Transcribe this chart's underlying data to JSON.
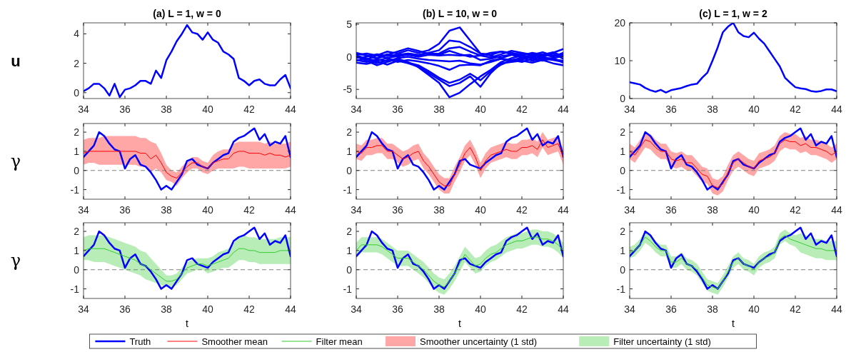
{
  "chart_data": [
    {
      "type": "line",
      "title": "(a) L = 1, w = 0",
      "ylabel": "u",
      "x": [
        34,
        34.25,
        34.5,
        34.75,
        35,
        35.25,
        35.5,
        35.75,
        36,
        36.25,
        36.5,
        36.75,
        37,
        37.25,
        37.5,
        37.75,
        38,
        38.25,
        38.5,
        38.75,
        39,
        39.25,
        39.5,
        39.75,
        40,
        40.25,
        40.5,
        40.75,
        41,
        41.25,
        41.5,
        41.75,
        42,
        42.25,
        42.5,
        42.75,
        43,
        43.25,
        43.5,
        43.75,
        44
      ],
      "xlim": [
        34,
        44
      ],
      "xticks": [
        34,
        36,
        38,
        40,
        42,
        44
      ],
      "ylim": [
        -0.4,
        4.75
      ],
      "yticks": [
        0,
        2,
        4
      ],
      "series": [
        {
          "color": "#0000ff",
          "values": [
            0.1,
            0.3,
            0.6,
            0.6,
            0.3,
            -0.2,
            0.6,
            -0.3,
            0.2,
            0.3,
            0.5,
            0.8,
            0.8,
            0.6,
            1.5,
            1.0,
            2.2,
            2.8,
            3.5,
            4.0,
            4.6,
            4.1,
            4.0,
            3.6,
            4.1,
            3.6,
            3.4,
            2.8,
            2.6,
            2.3,
            1.0,
            0.8,
            0.5,
            0.8,
            0.9,
            0.6,
            0.5,
            0.5,
            0.9,
            1.2,
            0.3
          ]
        }
      ]
    },
    {
      "type": "line",
      "title": "(b) L = 10, w = 0",
      "x": [
        34,
        34.5,
        35,
        35.5,
        36,
        36.5,
        37,
        37.5,
        38,
        38.5,
        39,
        39.5,
        40,
        40.5,
        41,
        41.5,
        42,
        42.5,
        43,
        43.5,
        44
      ],
      "xlim": [
        34,
        44
      ],
      "xticks": [
        34,
        36,
        38,
        40,
        42,
        44
      ],
      "ylim": [
        -6.4,
        5.2
      ],
      "yticks": [
        -5,
        0,
        5
      ],
      "series": [
        {
          "color": "#0000ff",
          "values": [
            0.3,
            0.5,
            0.2,
            0.8,
            0.5,
            1.0,
            0.6,
            1.0,
            2.0,
            4.0,
            4.5,
            2.5,
            0.5,
            0.3,
            0.8,
            0.6,
            0.3,
            0.5,
            0.2,
            0.6,
            1.2
          ]
        },
        {
          "color": "#0000ff",
          "values": [
            -0.2,
            0.0,
            0.4,
            0.1,
            0.3,
            0.5,
            0.3,
            0.6,
            1.0,
            2.5,
            2.3,
            1.5,
            0.5,
            0.2,
            -0.2,
            0.3,
            0.5,
            0.2,
            0.4,
            0.0,
            0.6
          ]
        },
        {
          "color": "#0000ff",
          "values": [
            0.5,
            0.2,
            -0.3,
            0.3,
            0.8,
            1.3,
            0.9,
            0.4,
            0.5,
            1.3,
            1.5,
            0.8,
            0.2,
            -0.1,
            0.4,
            0.9,
            0.6,
            0.3,
            0.7,
            0.2,
            0.4
          ]
        },
        {
          "color": "#0000ff",
          "values": [
            0.0,
            -0.4,
            0.2,
            -0.2,
            0.1,
            0.3,
            0.0,
            0.3,
            0.2,
            0.3,
            0.2,
            0.3,
            -0.5,
            -0.3,
            0.1,
            0.3,
            -0.1,
            0.2,
            0.0,
            0.5,
            -0.3
          ]
        },
        {
          "color": "#0000ff",
          "values": [
            -0.5,
            -0.8,
            -0.4,
            -0.7,
            -0.2,
            0.0,
            -0.3,
            -0.5,
            -0.6,
            -0.7,
            -0.6,
            -1.0,
            -1.2,
            -0.8,
            -0.3,
            -0.5,
            -0.2,
            -0.6,
            -0.3,
            -0.5,
            -0.8
          ]
        },
        {
          "color": "#0000ff",
          "values": [
            0.2,
            -0.3,
            -0.6,
            -0.2,
            -0.8,
            -0.5,
            -0.7,
            -1.0,
            -1.4,
            -2.0,
            -1.3,
            -1.2,
            -1.3,
            -0.6,
            -0.3,
            -0.7,
            -0.4,
            0.0,
            -0.3,
            -0.2,
            0.1
          ]
        },
        {
          "color": "#0000ff",
          "values": [
            -0.6,
            -0.3,
            -1.0,
            -0.5,
            -0.4,
            -0.9,
            -1.3,
            -2.2,
            -3.2,
            -4.0,
            -3.5,
            -2.6,
            -3.6,
            -2.2,
            -1.2,
            -0.5,
            -0.8,
            -0.3,
            -0.6,
            -0.2,
            -0.9
          ]
        },
        {
          "color": "#0000ff",
          "values": [
            -0.9,
            -1.1,
            -0.7,
            -1.2,
            -0.6,
            -1.0,
            -1.5,
            -2.5,
            -3.5,
            -4.5,
            -4.0,
            -3.0,
            -4.6,
            -2.5,
            -1.0,
            -0.8,
            -0.6,
            -0.9,
            -0.5,
            -1.0,
            -1.3
          ]
        },
        {
          "color": "#0000ff",
          "values": [
            0.0,
            -0.6,
            -1.3,
            -0.8,
            -0.3,
            -0.8,
            -1.6,
            -2.8,
            -4.0,
            -6.2,
            -5.5,
            -4.2,
            -3.0,
            -2.0,
            -0.8,
            -0.2,
            0.2,
            -0.3,
            0.0,
            -0.4,
            -0.6
          ]
        },
        {
          "color": "#0000ff",
          "values": [
            0.6,
            0.2,
            -0.2,
            0.4,
            0.0,
            0.5,
            0.2,
            0.6,
            0.3,
            0.9,
            0.4,
            0.0,
            0.2,
            0.6,
            0.8,
            0.4,
            0.2,
            0.6,
            0.3,
            0.7,
            0.1
          ]
        }
      ]
    },
    {
      "type": "line",
      "title": "(c) L = 1, w = 2",
      "x": [
        34,
        34.25,
        34.5,
        34.75,
        35,
        35.25,
        35.5,
        35.75,
        36,
        36.25,
        36.5,
        36.75,
        37,
        37.25,
        37.5,
        37.75,
        38,
        38.25,
        38.5,
        38.75,
        39,
        39.25,
        39.5,
        39.75,
        40,
        40.25,
        40.5,
        40.75,
        41,
        41.25,
        41.5,
        41.75,
        42,
        42.25,
        42.5,
        42.75,
        43,
        43.25,
        43.5,
        43.75,
        44
      ],
      "xlim": [
        34,
        44
      ],
      "xticks": [
        34,
        36,
        38,
        40,
        42,
        44
      ],
      "ylim": [
        0,
        20
      ],
      "yticks": [
        0,
        10,
        20
      ],
      "series": [
        {
          "color": "#0000ff",
          "values": [
            4.3,
            4.0,
            3.7,
            2.8,
            2.2,
            1.8,
            2.3,
            1.6,
            2.2,
            2.5,
            2.8,
            3.3,
            3.7,
            3.9,
            5.5,
            6.8,
            10.0,
            13.5,
            17.5,
            19.0,
            20.0,
            17.5,
            16.5,
            16.2,
            17.4,
            15.8,
            14.5,
            12.5,
            10.5,
            8.5,
            5.5,
            4.2,
            3.0,
            2.7,
            2.5,
            2.0,
            1.8,
            2.0,
            2.4,
            2.4,
            1.9
          ]
        }
      ]
    },
    {
      "type": "line",
      "ylabel": "γ",
      "legend": "bottom",
      "annotations": [
        "Smoother uncertainty (1 std)"
      ],
      "x": [
        34,
        34.25,
        34.5,
        34.75,
        35,
        35.25,
        35.5,
        35.75,
        36,
        36.25,
        36.5,
        36.75,
        37,
        37.25,
        37.5,
        37.75,
        38,
        38.25,
        38.5,
        38.75,
        39,
        39.25,
        39.5,
        39.75,
        40,
        40.25,
        40.5,
        40.75,
        41,
        41.25,
        41.5,
        41.75,
        42,
        42.25,
        42.5,
        42.75,
        43,
        43.25,
        43.5,
        43.75,
        44
      ],
      "xlim": [
        34,
        44
      ],
      "xticks": [
        34,
        36,
        38,
        40,
        42,
        44
      ],
      "ylim": [
        -1.5,
        2.45
      ],
      "yticks": [
        -1,
        0,
        1,
        2
      ],
      "ref_lines": [
        {
          "axis": "y",
          "value": 0,
          "color": "#808080",
          "line_style": "dashed"
        }
      ],
      "series": [
        {
          "name": "Truth",
          "color": "#0000ff",
          "values": [
            0.7,
            1.0,
            1.3,
            2.0,
            1.8,
            1.4,
            1.1,
            1.0,
            0.1,
            0.6,
            0.8,
            0.3,
            0.2,
            -0.1,
            -0.5,
            -1.0,
            -0.8,
            -1.0,
            -0.6,
            -0.2,
            0.5,
            0.6,
            0.3,
            0.2,
            0.1,
            0.4,
            0.6,
            0.8,
            0.9,
            1.5,
            1.7,
            1.8,
            2.0,
            2.2,
            1.6,
            1.9,
            1.3,
            1.5,
            1.4,
            1.8,
            0.7
          ]
        },
        {
          "name": "Smoother mean",
          "color": "#ff0000",
          "values": [
            0.9,
            1.0,
            1.0,
            1.0,
            1.0,
            1.0,
            1.0,
            1.0,
            1.0,
            1.0,
            1.0,
            0.9,
            0.9,
            0.6,
            0.8,
            0.4,
            -0.1,
            -0.3,
            -0.4,
            -0.1,
            0.2,
            0.4,
            0.4,
            0.2,
            0.1,
            0.4,
            0.5,
            0.6,
            0.6,
            0.9,
            1.0,
            1.0,
            0.9,
            0.9,
            0.9,
            0.8,
            0.9,
            0.8,
            0.8,
            0.7,
            0.8
          ],
          "lower": [
            0.3,
            0.4,
            0.4,
            0.3,
            0.3,
            0.3,
            0.3,
            0.3,
            0.3,
            0.3,
            0.3,
            0.2,
            0.2,
            -0.1,
            0.1,
            -0.1,
            -0.5,
            -0.6,
            -0.8,
            -0.4,
            -0.1,
            0.1,
            0.1,
            -0.1,
            -0.2,
            0.0,
            0.1,
            0.1,
            0.1,
            0.1,
            0.2,
            0.2,
            0.1,
            0.1,
            0.1,
            0.1,
            0.1,
            0.1,
            0.1,
            0.1,
            0.2
          ],
          "upper": [
            1.6,
            1.7,
            1.7,
            1.7,
            1.8,
            1.8,
            1.8,
            1.8,
            1.8,
            1.8,
            1.8,
            1.7,
            1.7,
            1.5,
            1.4,
            0.9,
            0.3,
            0.0,
            -0.1,
            0.2,
            0.5,
            0.7,
            0.7,
            0.5,
            0.4,
            0.8,
            1.0,
            1.1,
            1.1,
            1.4,
            1.5,
            1.5,
            1.5,
            1.5,
            1.5,
            1.4,
            1.5,
            1.4,
            1.4,
            1.4,
            1.5
          ]
        }
      ]
    },
    {
      "type": "line",
      "x": [
        34,
        34.25,
        34.5,
        34.75,
        35,
        35.25,
        35.5,
        35.75,
        36,
        36.25,
        36.5,
        36.75,
        37,
        37.25,
        37.5,
        37.75,
        38,
        38.25,
        38.5,
        38.75,
        39,
        39.25,
        39.5,
        39.75,
        40,
        40.25,
        40.5,
        40.75,
        41,
        41.25,
        41.5,
        41.75,
        42,
        42.25,
        42.5,
        42.75,
        43,
        43.25,
        43.5,
        43.75,
        44
      ],
      "xlim": [
        34,
        44
      ],
      "xticks": [
        34,
        36,
        38,
        40,
        42,
        44
      ],
      "ylim": [
        -1.5,
        2.45
      ],
      "yticks": [
        -1,
        0,
        1,
        2
      ],
      "ref_lines": [
        {
          "axis": "y",
          "value": 0,
          "color": "#808080",
          "line_style": "dashed"
        }
      ],
      "series": [
        {
          "color": "#0000ff",
          "values": [
            0.7,
            1.0,
            1.3,
            2.0,
            1.8,
            1.4,
            1.1,
            1.0,
            0.1,
            0.6,
            0.8,
            0.3,
            0.2,
            -0.1,
            -0.5,
            -1.0,
            -0.8,
            -1.0,
            -0.6,
            -0.2,
            0.5,
            0.6,
            0.3,
            0.2,
            0.1,
            0.4,
            0.6,
            0.8,
            0.9,
            1.5,
            1.7,
            1.8,
            2.0,
            2.2,
            1.6,
            1.9,
            1.3,
            1.5,
            1.4,
            1.8,
            0.7
          ]
        },
        {
          "color": "#ff0000",
          "values": [
            1.0,
            0.9,
            1.2,
            1.2,
            1.3,
            1.3,
            1.0,
            1.0,
            0.8,
            0.6,
            0.7,
            0.9,
            1.0,
            0.5,
            0.2,
            -0.2,
            -0.6,
            -0.8,
            -0.8,
            -0.2,
            0.3,
            0.9,
            1.2,
            0.7,
            0.0,
            0.5,
            0.8,
            0.9,
            1.0,
            1.1,
            1.0,
            1.0,
            1.2,
            1.2,
            1.3,
            1.1,
            1.6,
            1.2,
            1.3,
            1.4,
            0.7
          ],
          "lower": [
            0.6,
            0.5,
            0.8,
            0.8,
            0.9,
            0.9,
            0.6,
            0.6,
            0.4,
            0.2,
            0.3,
            0.5,
            0.6,
            0.1,
            -0.2,
            -0.6,
            -1.0,
            -1.2,
            -1.2,
            -0.6,
            -0.1,
            0.5,
            0.8,
            0.3,
            -0.4,
            0.1,
            0.4,
            0.5,
            0.6,
            0.7,
            0.6,
            0.6,
            0.8,
            0.8,
            0.9,
            0.7,
            1.2,
            0.8,
            0.9,
            1.0,
            0.3
          ],
          "upper": [
            1.4,
            1.3,
            1.6,
            1.6,
            1.7,
            1.7,
            1.4,
            1.4,
            1.2,
            1.0,
            1.1,
            1.3,
            1.4,
            0.9,
            0.6,
            0.2,
            -0.2,
            -0.4,
            -0.4,
            0.2,
            0.7,
            1.3,
            1.6,
            1.1,
            0.4,
            0.9,
            1.2,
            1.3,
            1.4,
            1.5,
            1.4,
            1.4,
            1.6,
            1.6,
            1.7,
            1.5,
            2.0,
            1.6,
            1.7,
            1.8,
            1.1
          ]
        }
      ]
    },
    {
      "type": "line",
      "x": [
        34,
        34.25,
        34.5,
        34.75,
        35,
        35.25,
        35.5,
        35.75,
        36,
        36.25,
        36.5,
        36.75,
        37,
        37.25,
        37.5,
        37.75,
        38,
        38.25,
        38.5,
        38.75,
        39,
        39.25,
        39.5,
        39.75,
        40,
        40.25,
        40.5,
        40.75,
        41,
        41.25,
        41.5,
        41.75,
        42,
        42.25,
        42.5,
        42.75,
        43,
        43.25,
        43.5,
        43.75,
        44
      ],
      "xlim": [
        34,
        44
      ],
      "xticks": [
        34,
        36,
        38,
        40,
        42,
        44
      ],
      "ylim": [
        -1.5,
        2.45
      ],
      "yticks": [
        -1,
        0,
        1,
        2
      ],
      "ref_lines": [
        {
          "axis": "y",
          "value": 0,
          "color": "#808080",
          "line_style": "dashed"
        }
      ],
      "series": [
        {
          "color": "#0000ff",
          "values": [
            0.7,
            1.0,
            1.3,
            2.0,
            1.8,
            1.4,
            1.1,
            1.0,
            0.1,
            0.6,
            0.8,
            0.3,
            0.2,
            -0.1,
            -0.5,
            -1.0,
            -0.8,
            -1.0,
            -0.6,
            -0.2,
            0.5,
            0.6,
            0.3,
            0.2,
            0.1,
            0.4,
            0.6,
            0.8,
            0.9,
            1.5,
            1.7,
            1.8,
            2.0,
            2.2,
            1.6,
            1.9,
            1.3,
            1.5,
            1.4,
            1.8,
            0.7
          ]
        },
        {
          "color": "#ff0000",
          "values": [
            1.0,
            0.8,
            1.2,
            1.6,
            1.5,
            1.2,
            1.0,
            1.0,
            0.6,
            0.5,
            0.6,
            0.4,
            0.4,
            0.1,
            -0.2,
            -0.3,
            -0.8,
            -0.9,
            -0.7,
            -0.1,
            0.4,
            0.6,
            0.4,
            0.2,
            0.1,
            0.5,
            0.6,
            0.7,
            0.9,
            1.4,
            1.6,
            1.5,
            1.5,
            1.3,
            1.4,
            1.2,
            1.2,
            1.1,
            1.0,
            0.8,
            1.0
          ],
          "lower": [
            0.6,
            0.4,
            0.8,
            1.2,
            1.1,
            0.8,
            0.6,
            0.6,
            0.2,
            0.1,
            0.2,
            0.0,
            0.0,
            -0.3,
            -0.6,
            -0.7,
            -1.2,
            -1.3,
            -1.1,
            -0.5,
            0.0,
            0.2,
            0.0,
            -0.2,
            -0.3,
            0.1,
            0.2,
            0.3,
            0.5,
            1.0,
            1.2,
            1.1,
            1.1,
            0.9,
            1.0,
            0.8,
            0.8,
            0.7,
            0.6,
            0.4,
            0.6
          ],
          "upper": [
            1.4,
            1.2,
            1.6,
            2.0,
            1.9,
            1.6,
            1.4,
            1.4,
            1.0,
            0.9,
            1.0,
            0.8,
            0.8,
            0.5,
            0.2,
            0.1,
            -0.4,
            -0.5,
            -0.3,
            0.3,
            0.8,
            1.0,
            0.8,
            0.6,
            0.5,
            0.9,
            1.0,
            1.1,
            1.3,
            1.8,
            2.0,
            1.9,
            1.9,
            1.7,
            1.8,
            1.6,
            1.6,
            1.5,
            1.4,
            1.2,
            1.4
          ]
        }
      ]
    },
    {
      "type": "line",
      "ylabel": "γ",
      "xlabel": "t",
      "legend": "bottom",
      "annotations": [
        "Filter uncertainty (1 std)"
      ],
      "x": [
        34,
        34.25,
        34.5,
        34.75,
        35,
        35.25,
        35.5,
        35.75,
        36,
        36.25,
        36.5,
        36.75,
        37,
        37.25,
        37.5,
        37.75,
        38,
        38.25,
        38.5,
        38.75,
        39,
        39.25,
        39.5,
        39.75,
        40,
        40.25,
        40.5,
        40.75,
        41,
        41.25,
        41.5,
        41.75,
        42,
        42.25,
        42.5,
        42.75,
        43,
        43.25,
        43.5,
        43.75,
        44
      ],
      "xlim": [
        34,
        44
      ],
      "xticks": [
        34,
        36,
        38,
        40,
        42,
        44
      ],
      "ylim": [
        -1.5,
        2.45
      ],
      "yticks": [
        -1,
        0,
        1,
        2
      ],
      "ref_lines": [
        {
          "axis": "y",
          "value": 0,
          "color": "#808080",
          "line_style": "dashed"
        }
      ],
      "series": [
        {
          "color": "#0000ff",
          "values": [
            0.7,
            1.0,
            1.3,
            2.0,
            1.8,
            1.4,
            1.1,
            1.0,
            0.1,
            0.6,
            0.8,
            0.3,
            0.2,
            -0.1,
            -0.5,
            -1.0,
            -0.8,
            -1.0,
            -0.6,
            -0.2,
            0.5,
            0.6,
            0.3,
            0.2,
            0.1,
            0.4,
            0.6,
            0.8,
            0.9,
            1.5,
            1.7,
            1.8,
            2.0,
            2.2,
            1.6,
            1.9,
            1.3,
            1.5,
            1.4,
            1.8,
            0.7
          ]
        },
        {
          "name": "Filter mean",
          "color": "#33cc33",
          "values": [
            1.0,
            1.1,
            1.1,
            1.1,
            1.1,
            1.0,
            0.9,
            0.8,
            0.7,
            0.6,
            0.5,
            0.3,
            0.2,
            0.0,
            -0.2,
            -0.4,
            -0.6,
            -0.6,
            -0.5,
            -0.2,
            0.1,
            0.2,
            0.3,
            0.3,
            0.2,
            0.3,
            0.4,
            0.5,
            0.6,
            0.9,
            1.1,
            1.1,
            1.0,
            1.0,
            0.9,
            0.9,
            0.9,
            0.9,
            1.0,
            1.0,
            1.0
          ],
          "lower": [
            0.5,
            0.5,
            0.4,
            0.4,
            0.4,
            0.3,
            0.2,
            0.1,
            0.0,
            -0.1,
            -0.2,
            -0.3,
            -0.5,
            -0.6,
            -0.7,
            -0.8,
            -0.9,
            -0.9,
            -0.8,
            -0.5,
            -0.2,
            -0.1,
            0.0,
            0.0,
            -0.2,
            -0.1,
            0.0,
            0.1,
            0.1,
            0.3,
            0.5,
            0.5,
            0.4,
            0.4,
            0.3,
            0.3,
            0.3,
            0.3,
            0.3,
            0.3,
            0.3
          ],
          "upper": [
            1.7,
            1.8,
            1.8,
            1.8,
            1.8,
            1.7,
            1.6,
            1.5,
            1.4,
            1.3,
            1.2,
            1.0,
            0.9,
            0.6,
            0.3,
            0.0,
            -0.3,
            -0.3,
            -0.2,
            0.1,
            0.4,
            0.5,
            0.6,
            0.6,
            0.6,
            0.7,
            0.9,
            1.0,
            1.1,
            1.4,
            1.7,
            1.8,
            1.7,
            1.7,
            1.6,
            1.6,
            1.6,
            1.6,
            1.7,
            1.7,
            1.7
          ]
        }
      ]
    },
    {
      "type": "line",
      "xlabel": "t",
      "x": [
        34,
        34.25,
        34.5,
        34.75,
        35,
        35.25,
        35.5,
        35.75,
        36,
        36.25,
        36.5,
        36.75,
        37,
        37.25,
        37.5,
        37.75,
        38,
        38.25,
        38.5,
        38.75,
        39,
        39.25,
        39.5,
        39.75,
        40,
        40.25,
        40.5,
        40.75,
        41,
        41.25,
        41.5,
        41.75,
        42,
        42.25,
        42.5,
        42.75,
        43,
        43.25,
        43.5,
        43.75,
        44
      ],
      "xlim": [
        34,
        44
      ],
      "xticks": [
        34,
        36,
        38,
        40,
        42,
        44
      ],
      "ylim": [
        -1.5,
        2.45
      ],
      "yticks": [
        -1,
        0,
        1,
        2
      ],
      "ref_lines": [
        {
          "axis": "y",
          "value": 0,
          "color": "#808080",
          "line_style": "dashed"
        }
      ],
      "series": [
        {
          "color": "#0000ff",
          "values": [
            0.7,
            1.0,
            1.3,
            2.0,
            1.8,
            1.4,
            1.1,
            1.0,
            0.1,
            0.6,
            0.8,
            0.3,
            0.2,
            -0.1,
            -0.5,
            -1.0,
            -0.8,
            -1.0,
            -0.6,
            -0.2,
            0.5,
            0.6,
            0.3,
            0.2,
            0.1,
            0.4,
            0.6,
            0.8,
            0.9,
            1.5,
            1.7,
            1.8,
            2.0,
            2.2,
            1.6,
            1.9,
            1.3,
            1.5,
            1.4,
            1.8,
            0.7
          ]
        },
        {
          "color": "#33cc33",
          "values": [
            1.0,
            1.3,
            1.3,
            1.3,
            1.3,
            1.2,
            1.0,
            0.8,
            0.6,
            0.6,
            0.6,
            0.4,
            0.2,
            0.0,
            -0.3,
            -0.6,
            -0.8,
            -0.9,
            -0.6,
            -0.2,
            0.3,
            0.8,
            0.5,
            0.2,
            0.3,
            0.6,
            0.8,
            0.9,
            1.1,
            1.3,
            1.4,
            1.5,
            1.5,
            1.6,
            1.7,
            1.7,
            1.6,
            1.6,
            1.5,
            1.3,
            1.0
          ],
          "lower": [
            0.6,
            0.9,
            0.9,
            0.9,
            0.9,
            0.8,
            0.6,
            0.4,
            0.2,
            0.2,
            0.2,
            0.0,
            -0.2,
            -0.4,
            -0.7,
            -1.0,
            -1.2,
            -1.3,
            -1.0,
            -0.6,
            -0.1,
            0.4,
            0.1,
            -0.2,
            -0.1,
            0.2,
            0.4,
            0.5,
            0.7,
            0.9,
            1.0,
            1.1,
            1.1,
            1.2,
            1.3,
            1.3,
            1.2,
            1.2,
            1.1,
            0.9,
            0.6
          ],
          "upper": [
            1.4,
            1.7,
            1.7,
            1.7,
            1.7,
            1.6,
            1.4,
            1.2,
            1.0,
            1.0,
            1.0,
            0.8,
            0.6,
            0.4,
            0.1,
            -0.2,
            -0.4,
            -0.5,
            -0.2,
            0.2,
            0.7,
            1.2,
            0.9,
            0.6,
            0.7,
            1.0,
            1.2,
            1.3,
            1.5,
            1.7,
            1.8,
            1.9,
            1.9,
            2.0,
            2.1,
            2.1,
            2.0,
            2.0,
            1.9,
            1.7,
            1.4
          ]
        }
      ]
    },
    {
      "type": "line",
      "xlabel": "t",
      "x": [
        34,
        34.25,
        34.5,
        34.75,
        35,
        35.25,
        35.5,
        35.75,
        36,
        36.25,
        36.5,
        36.75,
        37,
        37.25,
        37.5,
        37.75,
        38,
        38.25,
        38.5,
        38.75,
        39,
        39.25,
        39.5,
        39.75,
        40,
        40.25,
        40.5,
        40.75,
        41,
        41.25,
        41.5,
        41.75,
        42,
        42.25,
        42.5,
        42.75,
        43,
        43.25,
        43.5,
        43.75,
        44
      ],
      "xlim": [
        34,
        44
      ],
      "xticks": [
        34,
        36,
        38,
        40,
        42,
        44
      ],
      "ylim": [
        -1.5,
        2.45
      ],
      "yticks": [
        -1,
        0,
        1,
        2
      ],
      "ref_lines": [
        {
          "axis": "y",
          "value": 0,
          "color": "#808080",
          "line_style": "dashed"
        }
      ],
      "series": [
        {
          "color": "#0000ff",
          "values": [
            0.7,
            1.0,
            1.3,
            2.0,
            1.8,
            1.4,
            1.1,
            1.0,
            0.1,
            0.6,
            0.8,
            0.3,
            0.2,
            -0.1,
            -0.5,
            -1.0,
            -0.8,
            -1.0,
            -0.6,
            -0.2,
            0.5,
            0.6,
            0.3,
            0.2,
            0.1,
            0.4,
            0.6,
            0.8,
            0.9,
            1.5,
            1.7,
            1.8,
            2.0,
            2.2,
            1.6,
            1.9,
            1.3,
            1.5,
            1.4,
            1.8,
            0.7
          ]
        },
        {
          "color": "#33cc33",
          "values": [
            0.9,
            1.0,
            1.3,
            1.7,
            1.5,
            1.2,
            1.0,
            1.0,
            0.4,
            0.4,
            0.6,
            0.3,
            0.2,
            0.0,
            -0.4,
            -0.8,
            -0.9,
            -1.0,
            -0.6,
            -0.1,
            0.4,
            0.6,
            0.3,
            0.2,
            0.0,
            0.4,
            0.6,
            0.7,
            0.9,
            1.6,
            1.8,
            1.6,
            1.5,
            1.4,
            1.3,
            1.2,
            1.1,
            1.1,
            1.0,
            1.0,
            1.0
          ],
          "lower": [
            0.6,
            0.7,
            1.0,
            1.4,
            1.2,
            0.9,
            0.7,
            0.7,
            0.1,
            0.1,
            0.3,
            0.0,
            -0.1,
            -0.3,
            -0.7,
            -1.1,
            -1.2,
            -1.3,
            -0.9,
            -0.4,
            0.1,
            0.3,
            0.0,
            -0.1,
            -0.3,
            0.1,
            0.3,
            0.4,
            0.6,
            1.3,
            1.5,
            1.3,
            1.2,
            0.9,
            0.8,
            0.7,
            0.6,
            0.6,
            0.5,
            0.5,
            0.5
          ],
          "upper": [
            1.2,
            1.3,
            1.6,
            2.0,
            1.8,
            1.5,
            1.3,
            1.3,
            0.7,
            0.7,
            0.9,
            0.6,
            0.5,
            0.3,
            -0.1,
            -0.5,
            -0.6,
            -0.7,
            -0.3,
            0.2,
            0.7,
            0.9,
            0.6,
            0.5,
            0.3,
            0.7,
            0.9,
            1.0,
            1.2,
            1.9,
            2.1,
            1.9,
            1.8,
            1.9,
            1.8,
            1.7,
            1.6,
            1.6,
            1.5,
            1.5,
            1.5
          ]
        }
      ]
    }
  ]
}
